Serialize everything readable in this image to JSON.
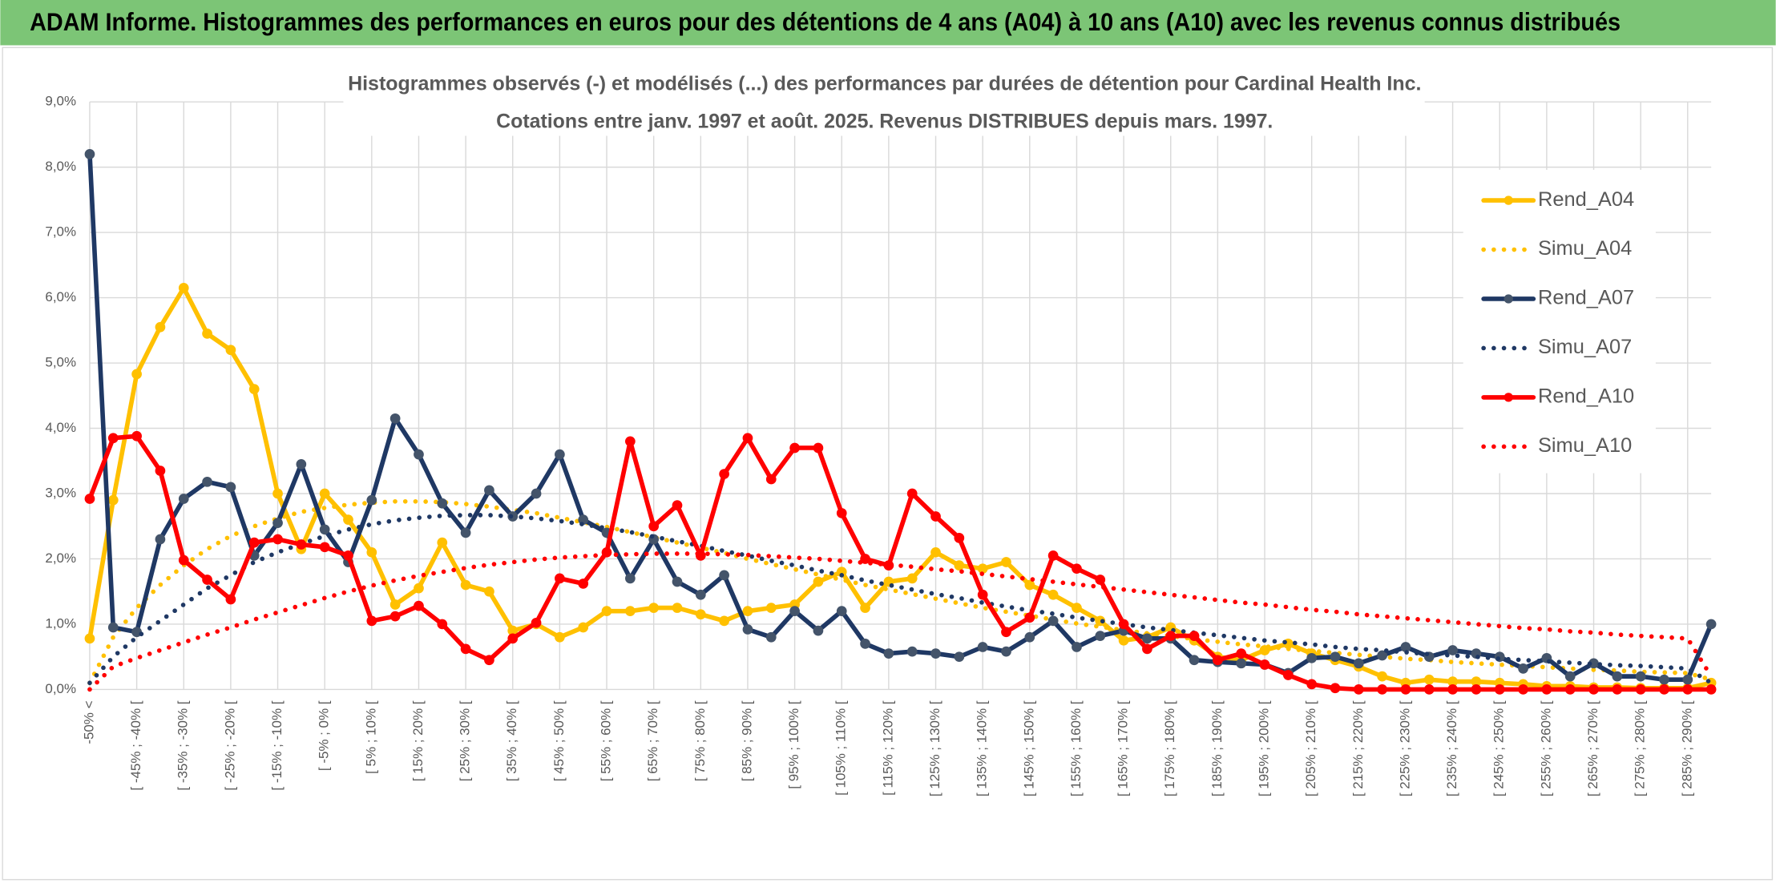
{
  "header": {
    "title": "ADAM Informe. Histogrammes des performances en euros pour des détentions de 4 ans (A04) à 10 ans (A10) avec les revenus connus distribués"
  },
  "chart_data": {
    "type": "line",
    "title": "Histogrammes observés (-) et modélisés (...) des performances par durées de détention pour Cardinal Health Inc.",
    "subtitle": "Cotations entre janv. 1997 et août. 2025. Revenus DISTRIBUES depuis mars. 1997.",
    "categories": [
      "-50% <",
      null,
      "[ -45% ; -40% [",
      null,
      "[ -35% ; -30% [",
      null,
      "[ -25% ; -20% [",
      null,
      "[ -15% ; -10% [",
      null,
      "[ -5% ; 0% [",
      null,
      "[ 5% ; 10% [",
      null,
      "[ 15% ; 20% [",
      null,
      "[ 25% ; 30% [",
      null,
      "[ 35% ; 40% [",
      null,
      "[ 45% ; 50% [",
      null,
      "[ 55% ; 60% [",
      null,
      "[ 65% ; 70% [",
      null,
      "[ 75% ; 80% [",
      null,
      "[ 85% ; 90% [",
      null,
      "[ 95% ; 100% [",
      null,
      "[ 105% ; 110% [",
      null,
      "[ 115% ; 120% [",
      null,
      "[ 125% ; 130% [",
      null,
      "[ 135% ; 140% [",
      null,
      "[ 145% ; 150% [",
      null,
      "[ 155% ; 160% [",
      null,
      "[ 165% ; 170% [",
      null,
      "[ 175% ; 180% [",
      null,
      "[ 185% ; 190% [",
      null,
      "[ 195% ; 200% [",
      null,
      "[ 205% ; 210% [",
      null,
      "[ 215% ; 220% [",
      null,
      "[ 225% ; 230% [",
      null,
      "[ 235% ; 240% [",
      null,
      "[ 245% ; 250% [",
      null,
      "[ 255% ; 260% [",
      null,
      "[ 265% ; 270% [",
      null,
      "[ 275% ; 280% [",
      null,
      "[ 285% ; 290% [",
      null
    ],
    "ylim": [
      0,
      9
    ],
    "yticks": [
      {
        "value": 0,
        "label": "0,0%"
      },
      {
        "value": 1,
        "label": "1,0%"
      },
      {
        "value": 2,
        "label": "2,0%"
      },
      {
        "value": 3,
        "label": "3,0%"
      },
      {
        "value": 4,
        "label": "4,0%"
      },
      {
        "value": 5,
        "label": "5,0%"
      },
      {
        "value": 6,
        "label": "6,0%"
      },
      {
        "value": 7,
        "label": "7,0%"
      },
      {
        "value": 8,
        "label": "8,0%"
      },
      {
        "value": 9,
        "label": "9,0%"
      }
    ],
    "grid": true,
    "legend": "right",
    "series": [
      {
        "name": "Rend_A04",
        "color": "#FFC000",
        "marker_color": "#FFC000",
        "style": "solid",
        "values": [
          0.78,
          2.9,
          4.83,
          5.55,
          6.15,
          5.45,
          5.2,
          4.6,
          3.0,
          2.15,
          3.0,
          2.6,
          2.1,
          1.3,
          1.55,
          2.25,
          1.6,
          1.5,
          0.9,
          1.0,
          0.8,
          0.95,
          1.2,
          1.2,
          1.25,
          1.25,
          1.15,
          1.05,
          1.2,
          1.25,
          1.3,
          1.65,
          1.8,
          1.25,
          1.65,
          1.7,
          2.1,
          1.9,
          1.85,
          1.95,
          1.6,
          1.45,
          1.25,
          1.05,
          0.75,
          0.8,
          0.95,
          0.75,
          0.5,
          0.45,
          0.6,
          0.7,
          0.55,
          0.45,
          0.35,
          0.2,
          0.1,
          0.15,
          0.12,
          0.12,
          0.1,
          0.08,
          0.05,
          0.05,
          0.03,
          0.03,
          0.02,
          0.02,
          0.02,
          0.1
        ]
      },
      {
        "name": "Simu_A04",
        "color": "#FFC000",
        "style": "dotted",
        "values": [
          0.1,
          0.8,
          1.25,
          1.6,
          1.9,
          2.15,
          2.35,
          2.5,
          2.62,
          2.72,
          2.78,
          2.83,
          2.86,
          2.88,
          2.88,
          2.87,
          2.84,
          2.8,
          2.75,
          2.7,
          2.63,
          2.56,
          2.49,
          2.41,
          2.33,
          2.25,
          2.17,
          2.09,
          2.0,
          1.92,
          1.84,
          1.76,
          1.68,
          1.6,
          1.53,
          1.46,
          1.39,
          1.32,
          1.25,
          1.19,
          1.13,
          1.07,
          1.01,
          0.96,
          0.91,
          0.86,
          0.82,
          0.77,
          0.73,
          0.69,
          0.66,
          0.62,
          0.59,
          0.56,
          0.53,
          0.5,
          0.47,
          0.45,
          0.42,
          0.4,
          0.38,
          0.36,
          0.34,
          0.32,
          0.3,
          0.29,
          0.27,
          0.26,
          0.25,
          0.15
        ]
      },
      {
        "name": "Rend_A07",
        "color": "#1F3864",
        "marker_color": "#44546A",
        "style": "solid",
        "values": [
          8.2,
          0.95,
          0.88,
          2.3,
          2.92,
          3.18,
          3.1,
          2.05,
          2.55,
          3.45,
          2.45,
          1.95,
          2.9,
          4.15,
          3.6,
          2.85,
          2.4,
          3.05,
          2.65,
          3.0,
          3.6,
          2.6,
          2.4,
          1.7,
          2.3,
          1.65,
          1.45,
          1.75,
          0.92,
          0.8,
          1.2,
          0.9,
          1.2,
          0.7,
          0.55,
          0.58,
          0.55,
          0.5,
          0.65,
          0.58,
          0.8,
          1.05,
          0.65,
          0.82,
          0.9,
          0.78,
          0.78,
          0.45,
          0.42,
          0.4,
          0.38,
          0.25,
          0.48,
          0.5,
          0.4,
          0.52,
          0.65,
          0.5,
          0.6,
          0.55,
          0.5,
          0.32,
          0.48,
          0.2,
          0.4,
          0.2,
          0.2,
          0.15,
          0.15,
          1.0
        ]
      },
      {
        "name": "Simu_A07",
        "color": "#1F3864",
        "style": "dotted",
        "values": [
          0.1,
          0.5,
          0.8,
          1.05,
          1.3,
          1.55,
          1.75,
          1.95,
          2.1,
          2.23,
          2.35,
          2.45,
          2.53,
          2.59,
          2.63,
          2.66,
          2.67,
          2.67,
          2.65,
          2.62,
          2.58,
          2.53,
          2.47,
          2.41,
          2.34,
          2.27,
          2.2,
          2.12,
          2.05,
          1.97,
          1.9,
          1.82,
          1.75,
          1.67,
          1.6,
          1.53,
          1.46,
          1.4,
          1.33,
          1.27,
          1.21,
          1.16,
          1.1,
          1.05,
          1.0,
          0.95,
          0.91,
          0.87,
          0.83,
          0.79,
          0.75,
          0.72,
          0.69,
          0.65,
          0.62,
          0.6,
          0.57,
          0.54,
          0.52,
          0.5,
          0.47,
          0.45,
          0.43,
          0.41,
          0.39,
          0.37,
          0.36,
          0.34,
          0.32,
          0.1
        ]
      },
      {
        "name": "Rend_A10",
        "color": "#FF0000",
        "marker_color": "#FF0000",
        "style": "solid",
        "values": [
          2.92,
          3.85,
          3.88,
          3.35,
          1.98,
          1.68,
          1.38,
          2.25,
          2.3,
          2.22,
          2.18,
          2.05,
          1.05,
          1.12,
          1.28,
          1.0,
          0.62,
          0.45,
          0.78,
          1.02,
          1.7,
          1.62,
          2.1,
          3.8,
          2.5,
          2.82,
          2.05,
          3.3,
          3.85,
          3.22,
          3.7,
          3.7,
          2.7,
          2.0,
          1.9,
          3.0,
          2.65,
          2.32,
          1.45,
          0.88,
          1.1,
          2.05,
          1.85,
          1.68,
          1.0,
          0.62,
          0.82,
          0.82,
          0.45,
          0.55,
          0.38,
          0.22,
          0.08,
          0.02,
          0,
          0,
          0,
          0,
          0,
          0,
          0,
          0,
          0,
          0,
          0,
          0,
          0,
          0,
          0,
          0
        ]
      },
      {
        "name": "Simu_A10",
        "color": "#FF0000",
        "style": "dotted",
        "values": [
          0.0,
          0.35,
          0.48,
          0.6,
          0.72,
          0.84,
          0.95,
          1.07,
          1.18,
          1.29,
          1.4,
          1.5,
          1.59,
          1.67,
          1.74,
          1.8,
          1.86,
          1.91,
          1.95,
          1.99,
          2.02,
          2.04,
          2.06,
          2.07,
          2.08,
          2.08,
          2.08,
          2.07,
          2.06,
          2.04,
          2.02,
          2.0,
          1.97,
          1.94,
          1.91,
          1.88,
          1.84,
          1.81,
          1.77,
          1.73,
          1.69,
          1.65,
          1.61,
          1.57,
          1.53,
          1.49,
          1.45,
          1.41,
          1.37,
          1.33,
          1.3,
          1.26,
          1.22,
          1.19,
          1.15,
          1.12,
          1.09,
          1.06,
          1.03,
          1.0,
          0.97,
          0.94,
          0.92,
          0.89,
          0.87,
          0.84,
          0.82,
          0.8,
          0.78,
          0.2
        ]
      }
    ]
  }
}
